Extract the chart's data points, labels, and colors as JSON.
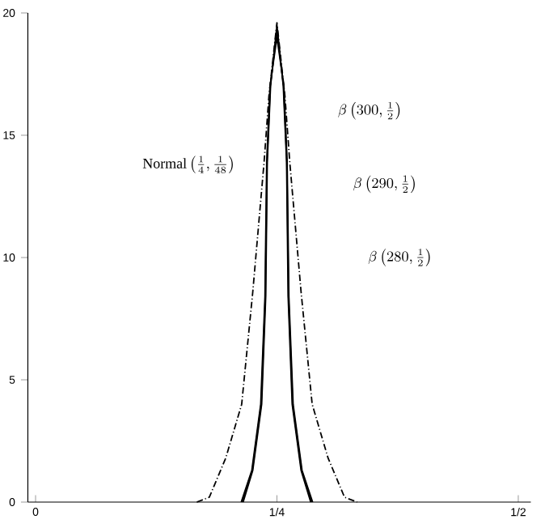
{
  "chart_data": {
    "type": "line",
    "xlim": [
      -0.008,
      0.513
    ],
    "ylim": [
      0,
      20
    ],
    "xticks": [
      {
        "value": 0,
        "label": "0"
      },
      {
        "value": 0.25,
        "label": "1/4"
      },
      {
        "value": 0.5,
        "label": "1/2"
      }
    ],
    "yticks": [
      0,
      5,
      10,
      15,
      20
    ],
    "grid": false,
    "marker": "none",
    "series": [
      {
        "color": "#000000",
        "line_style": "dashed",
        "x": [
          0.167,
          0.18,
          0.197,
          0.2135,
          0.225,
          0.2367,
          0.2417,
          0.25,
          0.2583,
          0.2633,
          0.275,
          0.2865,
          0.303,
          0.32,
          0.333
        ],
        "values": [
          0,
          0.2,
          1.8,
          4.0,
          8.6,
          13.9,
          16.6,
          19.6,
          16.6,
          13.9,
          8.6,
          4.0,
          1.8,
          0.2,
          0
        ]
      },
      {
        "color": "#000000",
        "x": [
          0.215,
          0.225,
          0.2342,
          0.2384,
          0.24,
          0.2434,
          0.25,
          0.2566,
          0.26,
          0.2616,
          0.2658,
          0.275,
          0.285
        ],
        "values": [
          0,
          1.3,
          4.0,
          8.4,
          13.9,
          17,
          19.5,
          17,
          13.9,
          8.4,
          4.0,
          1.3,
          0
        ]
      },
      {
        "color": "#000000",
        "x": [
          0.214,
          0.2245,
          0.2337,
          0.238,
          0.2397,
          0.2431,
          0.25,
          0.2569,
          0.2603,
          0.262,
          0.2663,
          0.2755,
          0.286
        ],
        "values": [
          0,
          1.3,
          4.0,
          8.4,
          13.9,
          17,
          19.3,
          17,
          13.9,
          8.4,
          4.0,
          1.3,
          0
        ]
      },
      {
        "color": "#000000",
        "x": [
          0.213,
          0.224,
          0.2332,
          0.2376,
          0.2394,
          0.2428,
          0.25,
          0.2572,
          0.2606,
          0.2624,
          0.2668,
          0.276,
          0.287
        ],
        "values": [
          0,
          1.3,
          4.0,
          8.4,
          13.9,
          17,
          19.0,
          17,
          13.9,
          8.4,
          4.0,
          1.3,
          0
        ]
      }
    ],
    "annotations": [
      "\\mathrm{Normal}\\left(\\tfrac{1}{4},\\tfrac{1}{48}\\right)",
      "\\beta\\left(300,\\tfrac{1}{2}\\right)",
      "\\beta\\left(290,\\tfrac{1}{2}\\right)",
      "\\beta\\left(280,\\tfrac{1}{2}\\right)"
    ]
  }
}
